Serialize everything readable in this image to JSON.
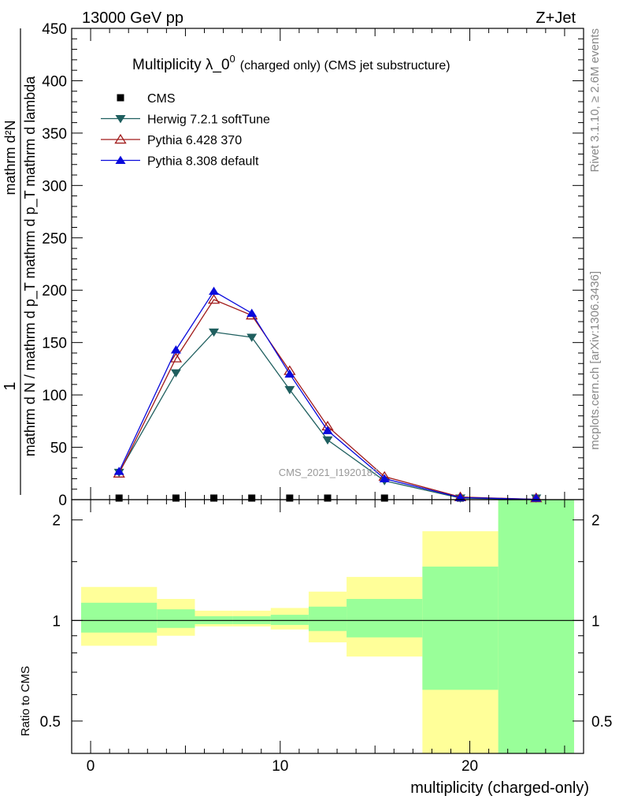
{
  "header": {
    "left_label": "13000 GeV pp",
    "right_label": "Z+Jet"
  },
  "side_labels": {
    "rivet": "Rivet 3.1.10, ≥ 2.6M events",
    "mcplots": "mcplots.cern.ch [arXiv:1306.3436]"
  },
  "watermark": "CMS_2021_I1920187",
  "chart_data": [
    {
      "type": "line",
      "title": "Multiplicity λ_0",
      "title_sup": "0",
      "subtitle": "(charged only) (CMS jet substructure)",
      "ylabel_numerator": "1",
      "ylabel_denominator": "mathrm d N / mathrm d p_T mathrm d p_T mathrm d lambda",
      "ylabel_short": "mathrm d²N",
      "ylim": [
        0,
        450
      ],
      "yticks": [
        0,
        50,
        100,
        150,
        200,
        250,
        300,
        350,
        400,
        450
      ],
      "xlim": [
        -1,
        26
      ],
      "legend_position": "top-left",
      "series": [
        {
          "name": "CMS",
          "color": "#000000",
          "marker": "square",
          "x": [
            1.5,
            4.5,
            6.5,
            8.5,
            10.5,
            12.5,
            15.5,
            19.5,
            23.5
          ],
          "values": [
            0.8,
            0.8,
            0.8,
            0.8,
            0.8,
            0.8,
            0.8,
            0.1,
            0.0
          ]
        },
        {
          "name": "Herwig 7.2.1 softTune",
          "color": "#1f5f5f",
          "marker": "triangle-down",
          "x": [
            1.5,
            4.5,
            6.5,
            8.5,
            10.5,
            12.5,
            15.5,
            19.5,
            23.5
          ],
          "values": [
            26,
            121,
            160,
            155,
            105,
            57,
            18,
            1.5,
            0.2
          ]
        },
        {
          "name": "Pythia 6.428 370",
          "color": "#a01a1a",
          "marker": "triangle-up-open",
          "x": [
            1.5,
            4.5,
            6.5,
            8.5,
            10.5,
            12.5,
            15.5,
            19.5,
            23.5
          ],
          "values": [
            25,
            135,
            191,
            176,
            123,
            70,
            22,
            2.5,
            0.3
          ]
        },
        {
          "name": "Pythia 8.308 default",
          "color": "#0a0adc",
          "marker": "triangle-up",
          "x": [
            1.5,
            4.5,
            6.5,
            8.5,
            10.5,
            12.5,
            15.5,
            19.5,
            23.5
          ],
          "values": [
            27,
            143,
            199,
            178,
            120,
            66,
            20,
            2.0,
            0.25
          ]
        }
      ]
    },
    {
      "type": "area",
      "ylabel": "Ratio to CMS",
      "xlabel": "multiplicity (charged-only)",
      "ylim": [
        0.4,
        2.3
      ],
      "yticks": [
        0.5,
        1,
        2
      ],
      "xlim": [
        -1,
        26
      ],
      "xticks": [
        0,
        10,
        20
      ],
      "reference_line": 1,
      "bands": [
        {
          "x_low": -0.5,
          "x_high": 3.5,
          "green_low": 0.92,
          "green_high": 1.13,
          "yellow_low": 0.84,
          "yellow_high": 1.26
        },
        {
          "x_low": 3.5,
          "x_high": 5.5,
          "green_low": 0.95,
          "green_high": 1.08,
          "yellow_low": 0.9,
          "yellow_high": 1.16
        },
        {
          "x_low": 5.5,
          "x_high": 7.5,
          "green_low": 0.975,
          "green_high": 1.03,
          "yellow_low": 0.96,
          "yellow_high": 1.07
        },
        {
          "x_low": 7.5,
          "x_high": 9.5,
          "green_low": 0.975,
          "green_high": 1.03,
          "yellow_low": 0.96,
          "yellow_high": 1.07
        },
        {
          "x_low": 9.5,
          "x_high": 11.5,
          "green_low": 0.97,
          "green_high": 1.04,
          "yellow_low": 0.94,
          "yellow_high": 1.09
        },
        {
          "x_low": 11.5,
          "x_high": 13.5,
          "green_low": 0.93,
          "green_high": 1.1,
          "yellow_low": 0.86,
          "yellow_high": 1.22
        },
        {
          "x_low": 13.5,
          "x_high": 17.5,
          "green_low": 0.89,
          "green_high": 1.16,
          "yellow_low": 0.78,
          "yellow_high": 1.35
        },
        {
          "x_low": 17.5,
          "x_high": 21.5,
          "green_low": 0.62,
          "green_high": 1.45,
          "yellow_low": 0.4,
          "yellow_high": 1.85
        },
        {
          "x_low": 21.5,
          "x_high": 25.5,
          "green_low": 0.4,
          "green_high": 2.3,
          "yellow_low": 0.4,
          "yellow_high": 2.3
        }
      ],
      "colors": {
        "green": "#99ff99",
        "yellow": "#ffff99"
      }
    }
  ]
}
